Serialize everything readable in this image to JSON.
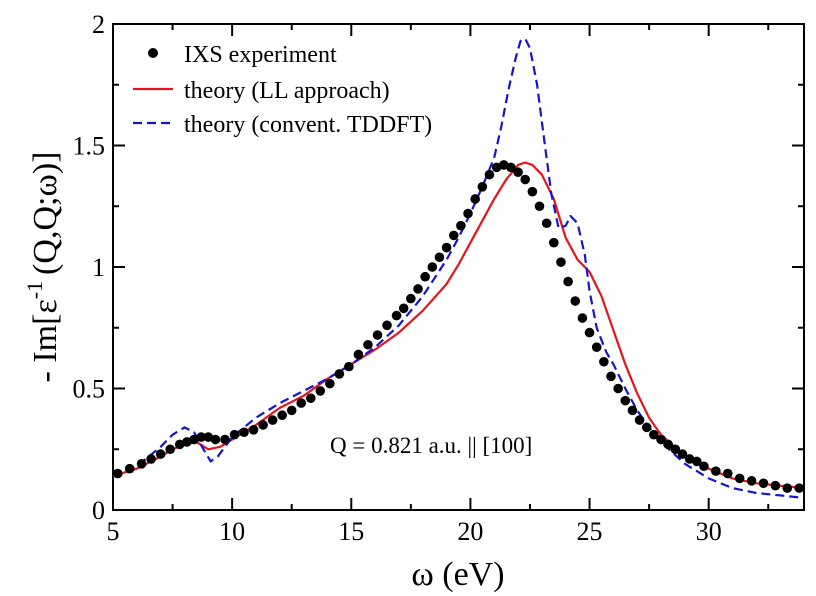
{
  "chart_data": {
    "type": "line",
    "xlabel": "ω (eV)",
    "ylabel": "- Im[ε",
    "ylabel_sup": "-1",
    "ylabel_tail": "(Q,Q;ω)]",
    "xlim": [
      5,
      34
    ],
    "ylim": [
      0,
      2
    ],
    "x_ticks": [
      5,
      10,
      15,
      20,
      25,
      30
    ],
    "y_ticks": [
      0,
      0.5,
      1,
      1.5,
      2
    ],
    "y_tick_labels": [
      "0",
      "0.5",
      "1",
      "1.5",
      "2"
    ],
    "grid": false,
    "legend_position": "top-left",
    "annotation": "Q = 0.821 a.u. || [100]",
    "series": [
      {
        "name": "IXS experiment",
        "kind": "scatter",
        "color": "#000000",
        "x": [
          5.2,
          5.7,
          6.2,
          6.6,
          7.0,
          7.4,
          7.8,
          8.1,
          8.4,
          8.7,
          9.0,
          9.3,
          9.7,
          10.1,
          10.5,
          10.9,
          11.3,
          11.7,
          12.1,
          12.5,
          12.9,
          13.3,
          13.7,
          14.1,
          14.5,
          14.9,
          15.3,
          15.7,
          16.1,
          16.5,
          16.9,
          17.2,
          17.5,
          17.8,
          18.1,
          18.4,
          18.7,
          19.0,
          19.3,
          19.6,
          19.9,
          20.2,
          20.5,
          20.8,
          21.1,
          21.4,
          21.7,
          22.0,
          22.3,
          22.6,
          22.9,
          23.2,
          23.5,
          23.8,
          24.1,
          24.4,
          24.7,
          25.0,
          25.3,
          25.6,
          25.9,
          26.2,
          26.5,
          26.8,
          27.1,
          27.4,
          27.7,
          28.0,
          28.3,
          28.6,
          28.9,
          29.2,
          29.5,
          29.8,
          30.3,
          30.8,
          31.3,
          31.8,
          32.3,
          32.8,
          33.3,
          33.8
        ],
        "y": [
          0.15,
          0.17,
          0.19,
          0.21,
          0.23,
          0.25,
          0.27,
          0.28,
          0.29,
          0.3,
          0.3,
          0.29,
          0.29,
          0.31,
          0.32,
          0.33,
          0.35,
          0.37,
          0.39,
          0.41,
          0.44,
          0.46,
          0.49,
          0.52,
          0.56,
          0.59,
          0.64,
          0.68,
          0.72,
          0.76,
          0.8,
          0.83,
          0.87,
          0.91,
          0.96,
          1.0,
          1.04,
          1.08,
          1.13,
          1.17,
          1.22,
          1.28,
          1.33,
          1.38,
          1.41,
          1.42,
          1.41,
          1.39,
          1.36,
          1.31,
          1.25,
          1.18,
          1.1,
          1.02,
          0.94,
          0.86,
          0.79,
          0.73,
          0.67,
          0.61,
          0.55,
          0.5,
          0.45,
          0.41,
          0.37,
          0.34,
          0.31,
          0.29,
          0.27,
          0.25,
          0.23,
          0.21,
          0.2,
          0.18,
          0.16,
          0.15,
          0.13,
          0.12,
          0.11,
          0.1,
          0.09,
          0.09
        ]
      },
      {
        "name": "theory (LL approach)",
        "kind": "line",
        "dash": "solid",
        "color": "#e8141c",
        "x": [
          5,
          6,
          7,
          7.5,
          8,
          8.5,
          9,
          9.5,
          10,
          11,
          12,
          13,
          14,
          15,
          16,
          17,
          18,
          19,
          19.5,
          20,
          20.5,
          21,
          21.5,
          22,
          22.3,
          22.6,
          23,
          23.5,
          24,
          24.5,
          25,
          25.5,
          26,
          26.5,
          27,
          27.5,
          28,
          29,
          30,
          31,
          32,
          33,
          34
        ],
        "y": [
          0.14,
          0.17,
          0.22,
          0.25,
          0.27,
          0.28,
          0.25,
          0.26,
          0.29,
          0.35,
          0.42,
          0.47,
          0.54,
          0.6,
          0.66,
          0.73,
          0.82,
          0.93,
          1.01,
          1.1,
          1.19,
          1.28,
          1.36,
          1.42,
          1.43,
          1.42,
          1.38,
          1.28,
          1.12,
          1.03,
          0.98,
          0.88,
          0.74,
          0.6,
          0.48,
          0.38,
          0.31,
          0.22,
          0.17,
          0.13,
          0.11,
          0.1,
          0.09
        ]
      },
      {
        "name": "theory (convent. TDDFT)",
        "kind": "line",
        "dash": "dashed",
        "color": "#1414d2",
        "x": [
          5,
          6,
          7,
          7.5,
          8,
          8.4,
          8.8,
          9.1,
          9.4,
          9.7,
          10,
          11,
          12,
          13,
          14,
          15,
          16,
          17,
          18,
          19,
          19.5,
          20,
          20.5,
          21,
          21.3,
          21.6,
          21.9,
          22.1,
          22.3,
          22.5,
          22.8,
          23.1,
          23.4,
          23.7,
          24,
          24.2,
          24.5,
          24.8,
          25,
          25.3,
          25.7,
          26,
          26.5,
          27,
          27.5,
          28,
          29,
          30,
          31,
          32,
          33,
          34
        ],
        "y": [
          0.14,
          0.18,
          0.26,
          0.31,
          0.34,
          0.32,
          0.25,
          0.2,
          0.22,
          0.26,
          0.3,
          0.38,
          0.44,
          0.49,
          0.54,
          0.6,
          0.67,
          0.76,
          0.88,
          1.03,
          1.12,
          1.22,
          1.33,
          1.45,
          1.58,
          1.73,
          1.86,
          1.93,
          1.94,
          1.9,
          1.75,
          1.52,
          1.3,
          1.16,
          1.17,
          1.21,
          1.18,
          1.05,
          0.9,
          0.75,
          0.65,
          0.6,
          0.5,
          0.41,
          0.34,
          0.28,
          0.19,
          0.13,
          0.09,
          0.07,
          0.06,
          0.05
        ]
      }
    ]
  }
}
